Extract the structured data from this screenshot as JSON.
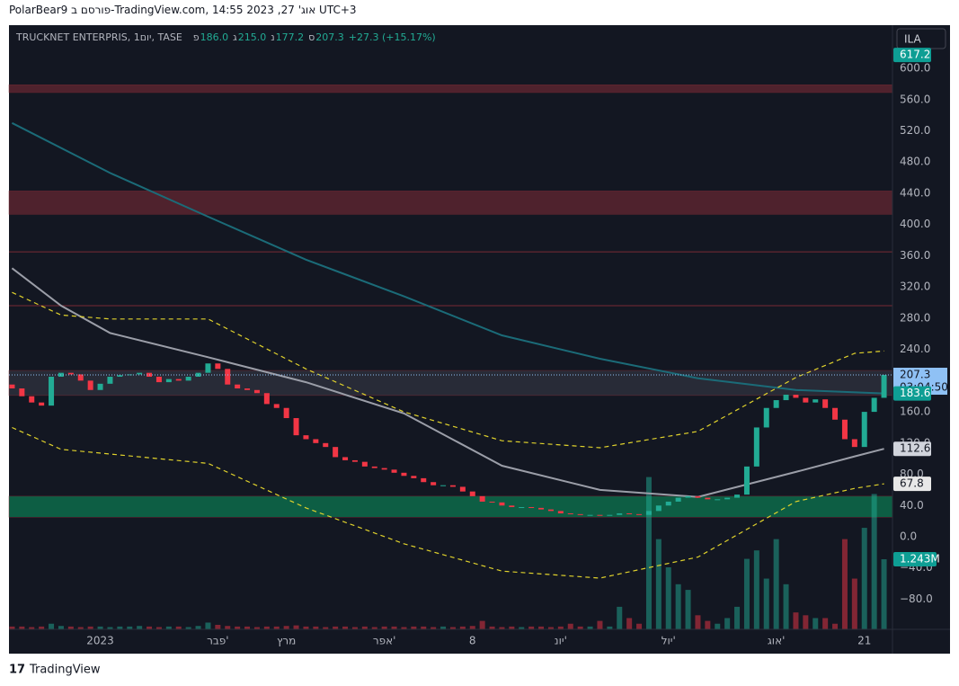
{
  "header": {
    "author_line": "PolarBear9 פורסם ב-TradingView.com, אוג' 27, 2023 14:55 UTC+3"
  },
  "legend": {
    "symbol": "TRUCKNET ENTERPRIS, 1יום, TASE",
    "o_label": "פ",
    "o": "186.0",
    "h_label": "ג",
    "h": "215.0",
    "l_label": "נ",
    "l": "177.2",
    "c_label": "ס",
    "c": "207.3",
    "change": "+27.3 (+15.17%)"
  },
  "currency_button": "ILA",
  "footer": {
    "brand": "TradingView"
  },
  "chart_data": {
    "type": "candlestick",
    "categories": [
      null,
      null,
      null,
      null,
      null,
      null,
      null,
      null,
      null,
      "2023",
      null,
      null,
      null,
      null,
      null,
      null,
      null,
      null,
      null,
      null,
      null,
      "פבר'",
      null,
      null,
      null,
      null,
      null,
      null,
      "מרץ",
      null,
      null,
      null,
      null,
      null,
      null,
      null,
      null,
      null,
      "אפר'",
      null,
      null,
      null,
      null,
      null,
      null,
      null,
      null,
      "8",
      null,
      null,
      null,
      null,
      null,
      null,
      null,
      null,
      "יונ'",
      null,
      null,
      null,
      null,
      null,
      null,
      null,
      null,
      null,
      null,
      "יול'",
      null,
      null,
      null,
      null,
      null,
      null,
      null,
      null,
      null,
      null,
      "אוג'",
      null,
      null,
      null,
      null,
      null,
      null,
      null,
      null,
      "21",
      null,
      null
    ],
    "first_open": 195,
    "values": [
      190,
      180,
      172,
      168,
      205,
      210,
      208,
      200,
      188,
      196,
      205,
      207,
      208,
      210,
      205,
      198,
      202,
      200,
      205,
      210,
      222,
      215,
      195,
      190,
      188,
      184,
      170,
      165,
      152,
      130,
      125,
      120,
      115,
      102,
      98,
      96,
      90,
      88,
      86,
      82,
      78,
      75,
      70,
      66,
      66,
      64,
      58,
      52,
      45,
      44,
      40,
      38,
      38,
      37,
      35,
      33,
      30,
      29,
      28,
      28,
      27,
      28,
      30,
      29,
      28,
      33,
      40,
      45,
      50,
      52,
      50,
      48,
      48,
      50,
      54,
      90,
      140,
      165,
      175,
      182,
      178,
      172,
      176,
      165,
      150,
      125,
      115,
      160,
      178,
      207.3
    ],
    "volume": [
      0.05,
      0.05,
      0.04,
      0.05,
      0.1,
      0.06,
      0.05,
      0.04,
      0.05,
      0.05,
      0.04,
      0.05,
      0.05,
      0.06,
      0.05,
      0.04,
      0.05,
      0.05,
      0.04,
      0.06,
      0.12,
      0.08,
      0.06,
      0.05,
      0.05,
      0.04,
      0.05,
      0.05,
      0.06,
      0.07,
      0.05,
      0.05,
      0.04,
      0.05,
      0.05,
      0.04,
      0.05,
      0.04,
      0.05,
      0.05,
      0.04,
      0.05,
      0.05,
      0.04,
      0.05,
      0.04,
      0.05,
      0.06,
      0.15,
      0.05,
      0.04,
      0.05,
      0.04,
      0.05,
      0.05,
      0.04,
      0.05,
      0.1,
      0.05,
      0.05,
      0.15,
      0.05,
      0.4,
      0.2,
      0.1,
      2.7,
      1.6,
      1.1,
      0.8,
      0.7,
      0.25,
      0.15,
      0.1,
      0.2,
      0.4,
      1.25,
      1.4,
      0.9,
      1.6,
      0.8,
      0.3,
      0.25,
      0.2,
      0.2,
      0.1,
      1.6,
      0.9,
      1.8,
      2.4,
      1.243
    ],
    "up_color": "#22ab94",
    "down_color": "#f23645",
    "ylim": [
      -118.6,
      653
    ],
    "y2lim": [
      0,
      10.68
    ],
    "yticks": [
      {
        "value": 600,
        "label": "600.0"
      },
      {
        "value": 560,
        "label": "560.0"
      },
      {
        "value": 520,
        "label": "520.0"
      },
      {
        "value": 480,
        "label": "480.0"
      },
      {
        "value": 440,
        "label": "440.0"
      },
      {
        "value": 400,
        "label": "400.0"
      },
      {
        "value": 360,
        "label": "360.0"
      },
      {
        "value": 320,
        "label": "320.0"
      },
      {
        "value": 280,
        "label": "280.0"
      },
      {
        "value": 240,
        "label": "240.0"
      },
      {
        "value": 160,
        "label": "160.0"
      },
      {
        "value": 120,
        "label": "120.0"
      },
      {
        "value": 80,
        "label": "80.0"
      },
      {
        "value": 40,
        "label": "40.0"
      },
      {
        "value": 0,
        "label": "0.0"
      },
      {
        "value": -40,
        "label": "−40.0"
      },
      {
        "value": -80,
        "label": "−80.0"
      }
    ],
    "zones": [
      {
        "low": 569,
        "high": 579,
        "color": "#5a2430"
      },
      {
        "low": 413,
        "high": 443,
        "color": "#5a2430"
      },
      {
        "low": 181,
        "high": 213,
        "color": "#2c2f3b"
      },
      {
        "low": 25,
        "high": 52,
        "color": "#0d6b4b"
      }
    ],
    "levels": [
      365,
      296
    ],
    "level_color": "#7a2a34",
    "lines": [
      {
        "color": "#1b6b78",
        "dash": false,
        "x": [
          0,
          10,
          20,
          30,
          40,
          50,
          60,
          70,
          80,
          89
        ],
        "values": [
          530,
          466,
          410,
          355,
          308,
          258,
          228,
          203,
          188,
          183.6
        ]
      },
      {
        "color": "#9b9ea8",
        "dash": false,
        "x": [
          0,
          5,
          10,
          20,
          30,
          40,
          50,
          60,
          70,
          80,
          86,
          89
        ],
        "values": [
          344,
          296,
          261,
          230,
          198,
          158,
          91,
          60,
          51,
          83,
          103,
          112.6
        ]
      },
      {
        "color": "#e0d22c",
        "dash": true,
        "x": [
          0,
          5,
          10,
          20,
          30,
          40,
          50,
          60,
          70,
          80,
          86,
          89
        ],
        "values": [
          313,
          284,
          279,
          279,
          215,
          160,
          123,
          114,
          135,
          204,
          235,
          238
        ]
      },
      {
        "color": "#e0d22c",
        "dash": true,
        "x": [
          0,
          5,
          10,
          20,
          30,
          40,
          50,
          60,
          70,
          80,
          86,
          89
        ],
        "values": [
          140,
          112,
          106,
          94,
          37,
          -9,
          -44,
          -53,
          -26,
          45,
          62,
          67.8
        ]
      }
    ],
    "badges": [
      {
        "value": 617.2,
        "label": "617.2",
        "bg": "#0e9e94",
        "fg": "#ffffff"
      },
      {
        "value": 183.6,
        "label": "183.6",
        "bg": "#0e9e94",
        "fg": "#ffffff"
      },
      {
        "value": 112.6,
        "label": "112.6",
        "bg": "#d1d4dc",
        "fg": "#131722"
      },
      {
        "value": 67.8,
        "label": "67.8",
        "bg": "#e8e8e8",
        "fg": "#131722"
      }
    ],
    "price_badge": {
      "value": 207.3,
      "label": "207.3",
      "timer": "03:04:50",
      "bg": "#8fc1f5",
      "fg": "#131722"
    },
    "volume_badge": {
      "value": 1.243,
      "label": "1.243M",
      "bg": "#0e9e94",
      "fg": "#ffffff"
    }
  }
}
